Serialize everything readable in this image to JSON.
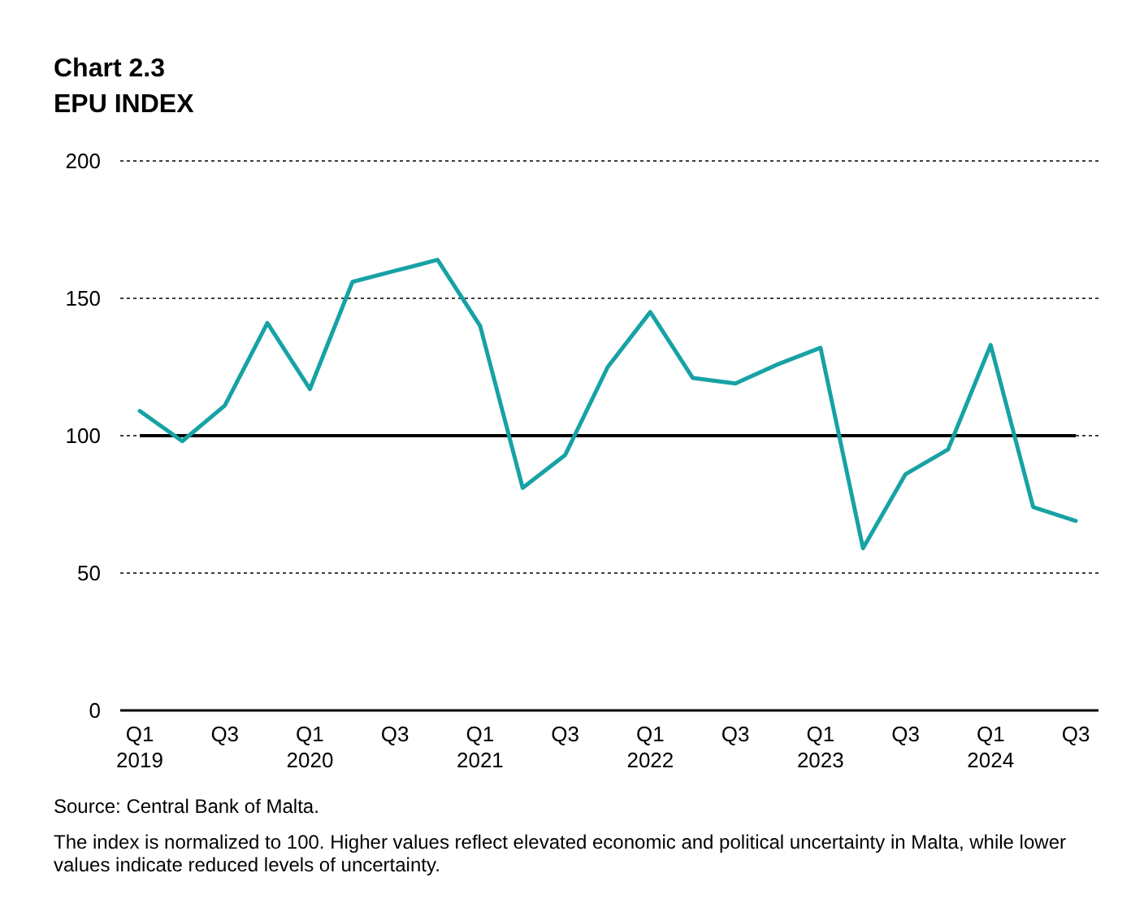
{
  "chart_data": {
    "type": "line",
    "title": "Chart 2.3",
    "subtitle": "EPU INDEX",
    "categories": [
      "Q1\n2019",
      null,
      "Q3",
      null,
      "Q1\n2020",
      null,
      "Q3",
      null,
      "Q1\n2021",
      null,
      "Q3",
      null,
      "Q1\n2022",
      null,
      "Q3",
      null,
      "Q1\n2023",
      null,
      "Q3",
      null,
      "Q1\n2024",
      null,
      "Q3"
    ],
    "series": [
      {
        "color": "#17a2a5",
        "values": [
          109,
          98,
          111,
          141,
          117,
          156,
          160,
          164,
          140,
          81,
          93,
          125,
          145,
          121,
          119,
          126,
          132,
          59,
          86,
          95,
          133,
          74,
          69
        ]
      }
    ],
    "ylim": [
      0,
      200
    ],
    "yticks": [
      0,
      50,
      100,
      150,
      200
    ],
    "grid": "y",
    "marker": "none",
    "line_style": "solid",
    "ref_lines": [
      {
        "axis": "y",
        "value": 100,
        "color": "#000000"
      }
    ],
    "annotations": [
      "Source: Central Bank of Malta.",
      "The index is normalized to 100. Higher values reflect elevated economic and political uncertainty in Malta, while lower values indicate reduced levels of uncertainty."
    ]
  }
}
